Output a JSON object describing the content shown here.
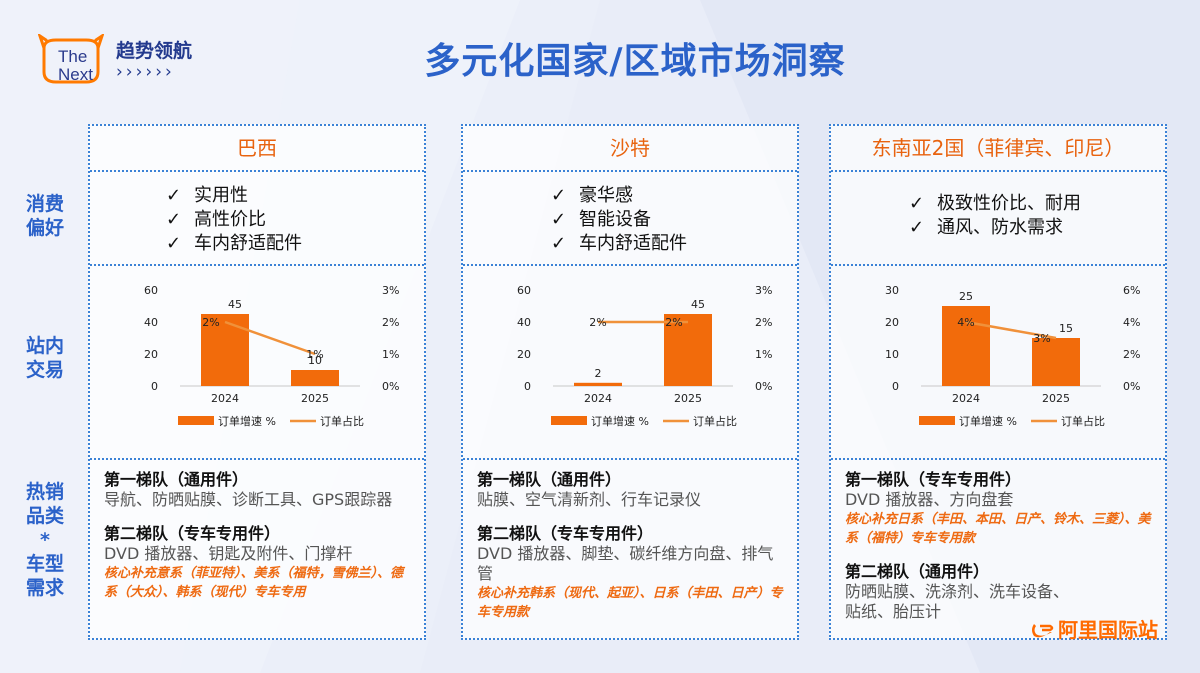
{
  "brand": {
    "logo_text_line1": "The",
    "logo_text_line2": "Next",
    "title": "趋势领航",
    "arrows": "››››››"
  },
  "page_title": "多元化国家/区域市场洞察",
  "row_labels": {
    "preference": [
      "消费",
      "偏好"
    ],
    "transaction": [
      "站内",
      "交易"
    ],
    "products": [
      "热销",
      "品类",
      "*",
      "车型",
      "需求"
    ]
  },
  "colors": {
    "accent_orange": "#e8630f",
    "bar_orange": "#f26b0b",
    "line_orange": "#f0913a",
    "border_blue": "#3b82d6",
    "title_blue": "#2b62c9"
  },
  "columns": [
    {
      "title": "巴西",
      "preferences": [
        "实用性",
        "高性价比",
        "车内舒适配件"
      ],
      "products": {
        "tier1_title": "第一梯队（通用件）",
        "tier1_items": "导航、防晒贴膜、诊断工具、GPS跟踪器",
        "tier2_title": "第二梯队（专车专用件）",
        "tier2_items": "DVD 播放器、钥匙及附件、门撑杆",
        "tier2_note": "核心补充意系（菲亚特）、美系（福特，雪佛兰）、德系（大众）、韩系（现代）专车专用"
      }
    },
    {
      "title": "沙特",
      "preferences": [
        "豪华感",
        "智能设备",
        "车内舒适配件"
      ],
      "products": {
        "tier1_title": "第一梯队（通用件）",
        "tier1_items": "贴膜、空气清新剂、行车记录仪",
        "tier2_title": "第二梯队（专车专用件）",
        "tier2_items": "DVD 播放器、脚垫、碳纤维方向盘、排气管",
        "tier2_note": "核心补充韩系（现代、起亚）、日系（丰田、日产）专车专用款"
      }
    },
    {
      "title": "东南亚2国（菲律宾、印尼）",
      "preferences": [
        "极致性价比、耐用",
        "通风、防水需求"
      ],
      "products": {
        "tier1_title": "第一梯队（专车专用件）",
        "tier1_items": "DVD 播放器、方向盘套",
        "tier1_note": "核心补充日系（丰田、本田、日产、铃木、三菱）、美系（福特）专车专用款",
        "tier2_title": "第二梯队（通用件）",
        "tier2_items": "防晒贴膜、洗涤剂、洗车设备、贴纸、胎压计"
      }
    }
  ],
  "check_mark": "✓",
  "chart_data": [
    {
      "type": "bar",
      "categories": [
        "2024",
        "2025"
      ],
      "series": [
        {
          "name": "订单增速 %",
          "type": "bar",
          "values": [
            45,
            10
          ],
          "labels": [
            "45",
            "10"
          ]
        },
        {
          "name": "订单占比",
          "type": "line",
          "values": [
            2,
            1
          ],
          "labels": [
            "2%",
            "1%"
          ]
        }
      ],
      "y_left_ticks": [
        "60",
        "40",
        "20",
        "0"
      ],
      "ylim_left": [
        0,
        60
      ],
      "y_right_ticks": [
        "3%",
        "2%",
        "1%",
        "0%"
      ],
      "ylim_right": [
        0,
        3
      ],
      "legend": "bottom"
    },
    {
      "type": "bar",
      "categories": [
        "2024",
        "2025"
      ],
      "series": [
        {
          "name": "订单增速 %",
          "type": "bar",
          "values": [
            2,
            45
          ],
          "labels": [
            "2",
            "45"
          ]
        },
        {
          "name": "订单占比",
          "type": "line",
          "values": [
            2,
            2
          ],
          "labels": [
            "2%",
            "2%"
          ]
        }
      ],
      "y_left_ticks": [
        "60",
        "40",
        "20",
        "0"
      ],
      "ylim_left": [
        0,
        60
      ],
      "y_right_ticks": [
        "3%",
        "2%",
        "1%",
        "0%"
      ],
      "ylim_right": [
        0,
        3
      ],
      "legend": "bottom"
    },
    {
      "type": "bar",
      "categories": [
        "2024",
        "2025"
      ],
      "series": [
        {
          "name": "订单增速 %",
          "type": "bar",
          "values": [
            25,
            15
          ],
          "labels": [
            "25",
            "15"
          ]
        },
        {
          "name": "订单占比",
          "type": "line",
          "values": [
            4,
            3
          ],
          "labels": [
            "4%",
            "3%"
          ]
        }
      ],
      "y_left_ticks": [
        "30",
        "20",
        "10",
        "0"
      ],
      "ylim_left": [
        0,
        30
      ],
      "y_right_ticks": [
        "6%",
        "4%",
        "2%",
        "0%"
      ],
      "ylim_right": [
        0,
        6
      ],
      "legend": "bottom"
    }
  ],
  "alibaba": {
    "text": "阿里国际站"
  }
}
